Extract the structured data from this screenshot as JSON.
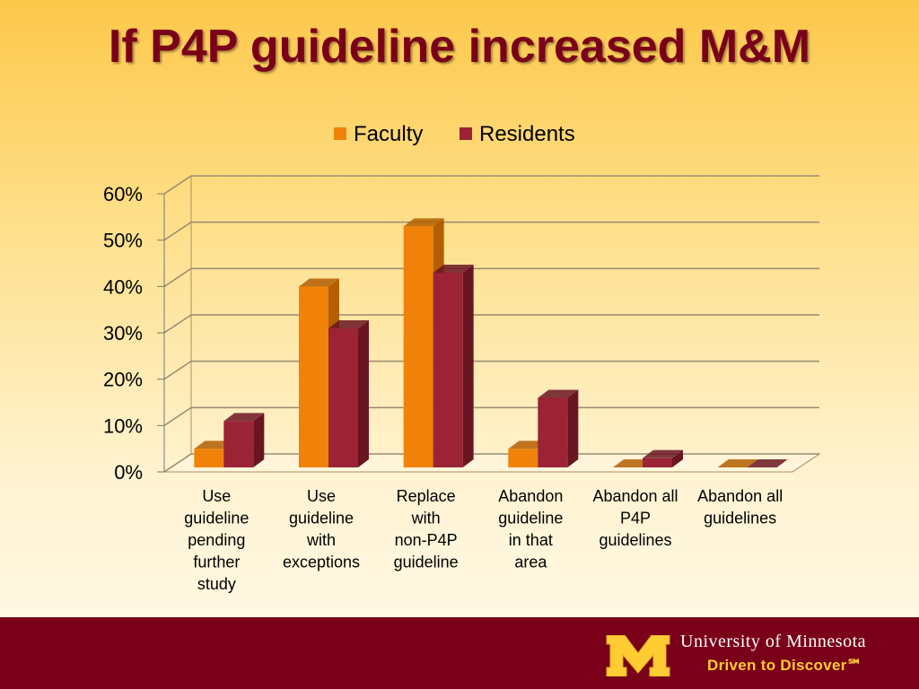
{
  "title": "If P4P guideline increased M&M",
  "footer": {
    "university": "University of Minnesota",
    "tagline": "Driven to Discover℠",
    "colors": {
      "maroon": "#7a0019",
      "gold": "#ffcc33"
    }
  },
  "chart_data": {
    "type": "bar",
    "categories": [
      "Use guideline pending further study",
      "Use guideline with exceptions",
      "Replace with non-P4P guideline",
      "Abandon guideline in that area",
      "Abandon all P4P guidelines",
      "Abandon all guidelines"
    ],
    "series": [
      {
        "name": "Faculty",
        "values": [
          4,
          39,
          52,
          4,
          0,
          0
        ],
        "color": "#f0820a",
        "shade": "#b35e00"
      },
      {
        "name": "Residents",
        "values": [
          10,
          30,
          42,
          15,
          2,
          0
        ],
        "color": "#9b2335",
        "shade": "#6a1522"
      }
    ],
    "ylim": [
      0,
      60
    ],
    "yticks": [
      "0%",
      "10%",
      "20%",
      "30%",
      "40%",
      "50%",
      "60%"
    ],
    "legend": "top",
    "grid": true,
    "style": "3d-clustered-column"
  }
}
